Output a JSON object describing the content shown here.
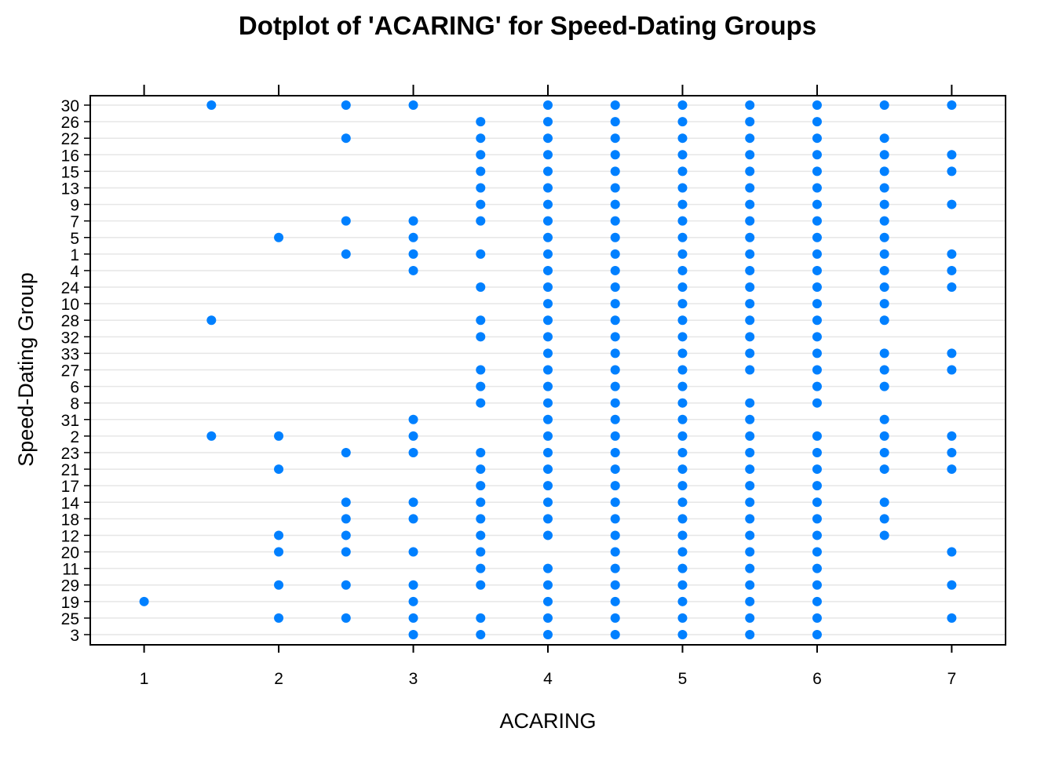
{
  "chart_data": {
    "type": "scatter",
    "title": "Dotplot of 'ACARING' for Speed-Dating Groups",
    "xlabel": "ACARING",
    "ylabel": "Speed-Dating Group",
    "xlim": [
      0.6,
      7.4
    ],
    "x_ticks": [
      "1",
      "2",
      "3",
      "4",
      "5",
      "6",
      "7"
    ],
    "groups": [
      "30",
      "26",
      "22",
      "16",
      "15",
      "13",
      "9",
      "7",
      "5",
      "1",
      "4",
      "24",
      "10",
      "28",
      "32",
      "33",
      "27",
      "6",
      "8",
      "31",
      "2",
      "23",
      "21",
      "17",
      "14",
      "18",
      "12",
      "20",
      "11",
      "29",
      "19",
      "25",
      "3"
    ],
    "grid": true,
    "point_color": "#0080ff",
    "points": {
      "30": [
        1.5,
        2.5,
        3,
        4,
        4.5,
        5,
        5.5,
        6,
        6.5,
        7
      ],
      "26": [
        3.5,
        4,
        4.5,
        5,
        5.5,
        6
      ],
      "22": [
        2.5,
        3.5,
        4,
        4.5,
        5,
        5.5,
        6,
        6.5
      ],
      "16": [
        3.5,
        4,
        4.5,
        5,
        5.5,
        6,
        6.5,
        7
      ],
      "15": [
        3.5,
        4,
        4.5,
        5,
        5.5,
        6,
        6.5,
        7
      ],
      "13": [
        3.5,
        4,
        4.5,
        5,
        5.5,
        6,
        6.5
      ],
      "9": [
        3.5,
        4,
        4.5,
        5,
        5.5,
        6,
        6.5,
        7
      ],
      "7": [
        2.5,
        3,
        3.5,
        4,
        4.5,
        5,
        5.5,
        6,
        6.5
      ],
      "5": [
        2,
        3,
        4,
        4.5,
        5,
        5.5,
        6,
        6.5
      ],
      "1": [
        2.5,
        3,
        3.5,
        4,
        4.5,
        5,
        5.5,
        6,
        6.5,
        7
      ],
      "4": [
        3,
        4,
        4.5,
        5,
        5.5,
        6,
        6.5,
        7
      ],
      "24": [
        3.5,
        4,
        4.5,
        5,
        5.5,
        6,
        6.5,
        7
      ],
      "10": [
        4,
        4.5,
        5,
        5.5,
        6,
        6.5
      ],
      "28": [
        1.5,
        3.5,
        4,
        4.5,
        5,
        5.5,
        6,
        6.5
      ],
      "32": [
        3.5,
        4,
        4.5,
        5,
        5.5,
        6
      ],
      "33": [
        4,
        4.5,
        5,
        5.5,
        6,
        6.5,
        7
      ],
      "27": [
        3.5,
        4,
        4.5,
        5,
        5.5,
        6,
        6.5,
        7
      ],
      "6": [
        3.5,
        4,
        4.5,
        5,
        6,
        6.5
      ],
      "8": [
        3.5,
        4,
        4.5,
        5,
        5.5,
        6
      ],
      "31": [
        3,
        4,
        4.5,
        5,
        5.5,
        6.5
      ],
      "2": [
        1.5,
        2,
        3,
        4,
        4.5,
        5,
        5.5,
        6,
        6.5,
        7
      ],
      "23": [
        2.5,
        3,
        3.5,
        4,
        4.5,
        5,
        5.5,
        6,
        6.5,
        7
      ],
      "21": [
        2,
        3.5,
        4,
        4.5,
        5,
        5.5,
        6,
        6.5,
        7
      ],
      "17": [
        3.5,
        4,
        4.5,
        5,
        5.5,
        6
      ],
      "14": [
        2.5,
        3,
        3.5,
        4,
        4.5,
        5,
        5.5,
        6,
        6.5
      ],
      "18": [
        2.5,
        3,
        3.5,
        4,
        4.5,
        5,
        5.5,
        6,
        6.5
      ],
      "12": [
        2,
        2.5,
        3.5,
        4,
        4.5,
        5,
        5.5,
        6,
        6.5
      ],
      "20": [
        2,
        2.5,
        3,
        3.5,
        4.5,
        5,
        5.5,
        6,
        7
      ],
      "11": [
        3.5,
        4,
        4.5,
        5,
        5.5,
        6
      ],
      "29": [
        2,
        2.5,
        3,
        3.5,
        4,
        4.5,
        5,
        5.5,
        6,
        7
      ],
      "19": [
        1,
        3,
        4,
        4.5,
        5,
        5.5,
        6
      ],
      "25": [
        2,
        2.5,
        3,
        3.5,
        4,
        4.5,
        5,
        5.5,
        6,
        7
      ],
      "3": [
        3,
        3.5,
        4,
        4.5,
        5,
        5.5,
        6
      ]
    }
  }
}
